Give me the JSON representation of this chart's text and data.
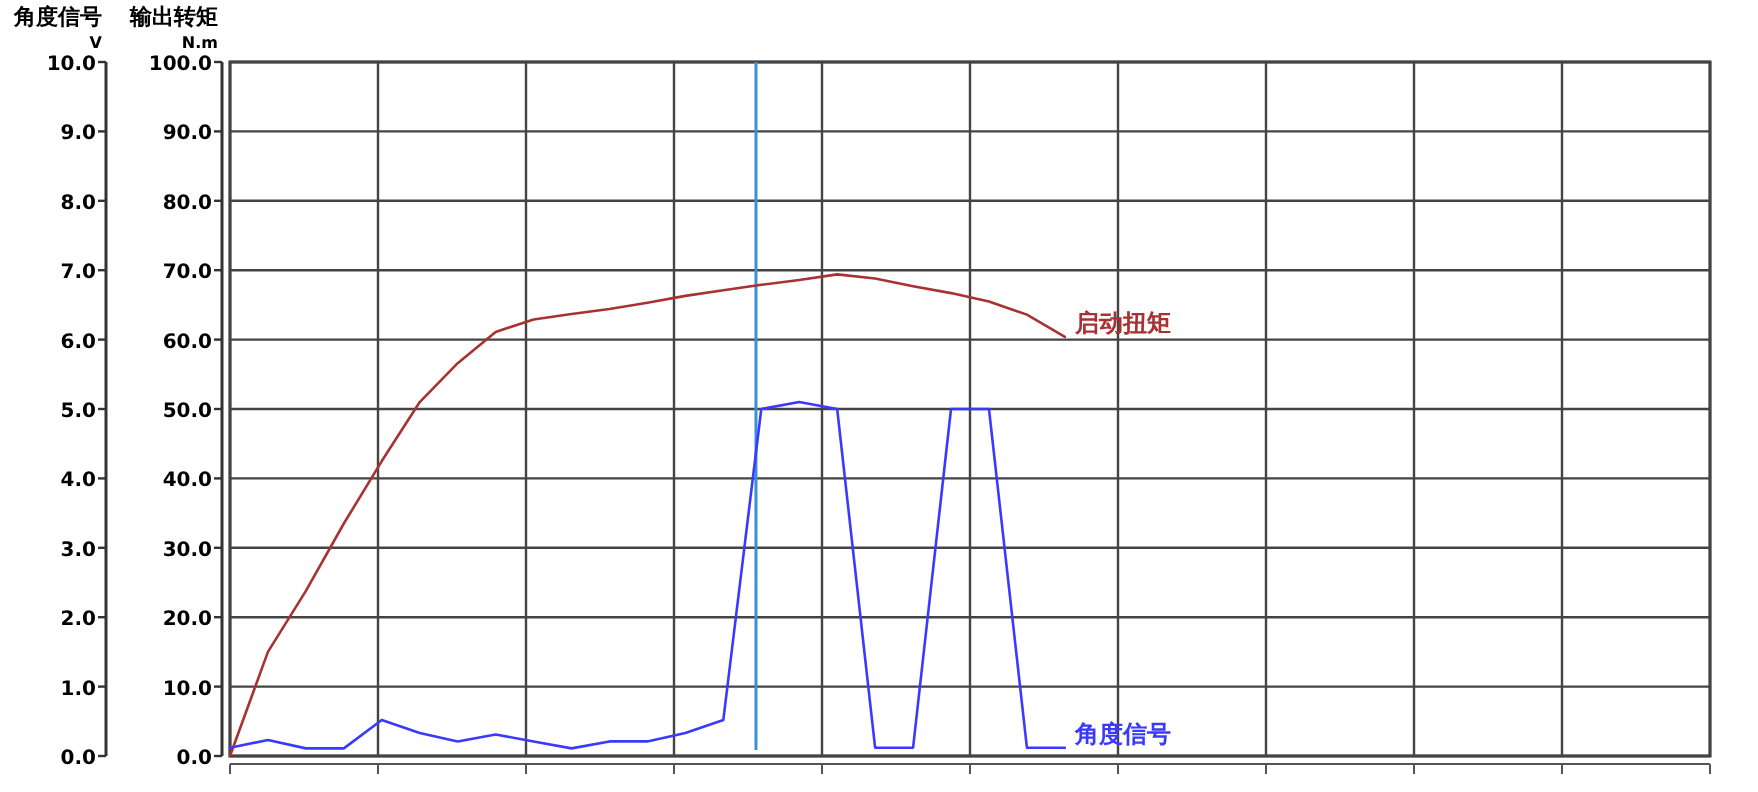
{
  "chart_data": {
    "type": "line",
    "ylabel": "输出转矩\nN.m",
    "y2label": "角度信号\nV",
    "categories": [
      null,
      null,
      null,
      null,
      null,
      null,
      null,
      null,
      null,
      null,
      null,
      null,
      null,
      null,
      null,
      null,
      null,
      null,
      null,
      null,
      null,
      null,
      null
    ],
    "ylim": [
      0,
      100
    ],
    "yticks": [
      {
        "value": 0,
        "label": "0.0"
      },
      {
        "value": 10,
        "label": "10.0"
      },
      {
        "value": 20,
        "label": "20.0"
      },
      {
        "value": 30,
        "label": "30.0"
      },
      {
        "value": 40,
        "label": "40.0"
      },
      {
        "value": 50,
        "label": "50.0"
      },
      {
        "value": 60,
        "label": "60.0"
      },
      {
        "value": 70,
        "label": "70.0"
      },
      {
        "value": 80,
        "label": "80.0"
      },
      {
        "value": 90,
        "label": "90.0"
      },
      {
        "value": 100,
        "label": "100.0"
      }
    ],
    "y2lim": [
      0,
      10
    ],
    "y2ticks": [
      {
        "value": 0,
        "label": "0.0"
      },
      {
        "value": 1,
        "label": "1.0"
      },
      {
        "value": 2,
        "label": "2.0"
      },
      {
        "value": 3,
        "label": "3.0"
      },
      {
        "value": 4,
        "label": "4.0"
      },
      {
        "value": 5,
        "label": "5.0"
      },
      {
        "value": 6,
        "label": "6.0"
      },
      {
        "value": 7,
        "label": "7.0"
      },
      {
        "value": 8,
        "label": "8.0"
      },
      {
        "value": 9,
        "label": "9.0"
      },
      {
        "value": 10,
        "label": "10.0"
      }
    ],
    "grid": true,
    "legend": false,
    "marker": "none",
    "line_style": "solid",
    "series": [
      {
        "name": "启动扭矩",
        "color": "#a83232",
        "axis": "y",
        "values": [
          0,
          15,
          23.8,
          33.5,
          42.5,
          51,
          56.6,
          61.1,
          62.9,
          63.7,
          64.4,
          65.3,
          66.3,
          67.1,
          67.9,
          68.6,
          69.4,
          68.8,
          67.7,
          66.7,
          65.5,
          63.6,
          60.4
        ]
      },
      {
        "name": "角度信号",
        "color": "#3a3aff",
        "axis": "y2",
        "values": [
          0.12,
          0.23,
          0.11,
          0.11,
          0.52,
          0.33,
          0.21,
          0.31,
          0.21,
          0.11,
          0.21,
          0.21,
          0.33,
          0.52,
          5.0,
          5.1,
          5.0,
          0.12,
          0.12,
          5.0,
          5.0,
          0.12,
          0.12
        ]
      }
    ]
  }
}
